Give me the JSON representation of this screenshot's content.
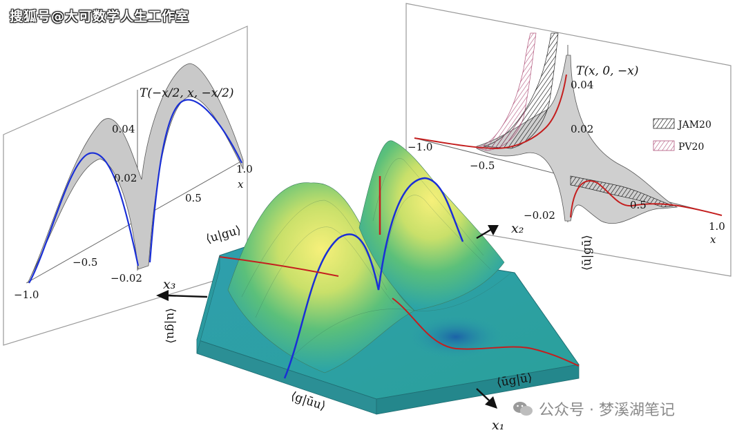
{
  "watermarks": {
    "top_left": "搜狐号@大可数学人生工作室",
    "bottom_right": "公众号 · 梦溪湖笔记"
  },
  "left_panel": {
    "title": "T(−x/2, x, −x/2)",
    "ticks_x": [
      "−1.0",
      "−0.5",
      "0.5",
      "1.0"
    ],
    "ticks_y": [
      "0.04",
      "0.02",
      "−0.02"
    ],
    "xlabel": "x"
  },
  "right_panel": {
    "title": "T(x, 0, −x)",
    "ticks_x": [
      "−1.0",
      "−0.5",
      "0.5",
      "1.0"
    ],
    "ticks_y": [
      "0.04",
      "0.02",
      "−0.02"
    ],
    "xlabel": "x",
    "legend": [
      "JAM20",
      "PV20"
    ]
  },
  "surface": {
    "labels": {
      "edge_top": "⟨u|gu⟩",
      "edge_right": "⟨ū|gū⟩",
      "edge_left": "⟨u|gu⟩",
      "edge_bottom_left": "⟨g|ūu⟩",
      "edge_bottom_right": "⟨ūg|ū⟩"
    },
    "axes": {
      "x1": "x₁",
      "x2": "x₂",
      "x3": "x₃"
    }
  },
  "colors": {
    "blue_curve": "#1a2fd6",
    "red_curve": "#c41e1e",
    "band": "#c8c8c8",
    "surface_base": "#2aa3a8",
    "surface_peak": "#f3ec6a"
  }
}
